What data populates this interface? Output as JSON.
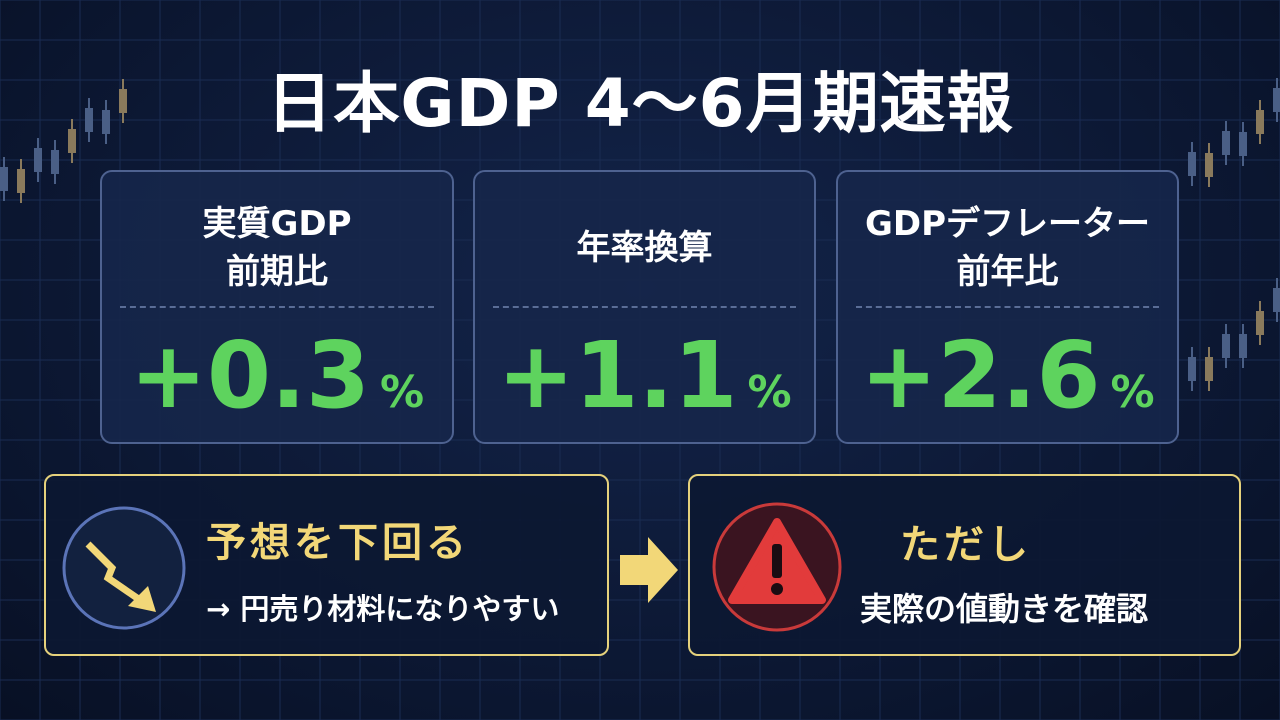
{
  "header": {
    "title": "日本GDP 4～6月期速報"
  },
  "cards": [
    {
      "label": [
        "実質GDP",
        "前期比"
      ],
      "value": "+0.3",
      "unit": "%"
    },
    {
      "label": [
        "年率換算"
      ],
      "value": "+1.1",
      "unit": "%"
    },
    {
      "label": [
        "GDPデフレーター",
        "前年比"
      ],
      "value": "+2.6",
      "unit": "%"
    }
  ],
  "notes": [
    {
      "heading": "予想を下回る",
      "text": "→ 円売り材料になりやすい"
    },
    {
      "heading": "ただし",
      "text": "実際の値動きを確認"
    }
  ]
}
